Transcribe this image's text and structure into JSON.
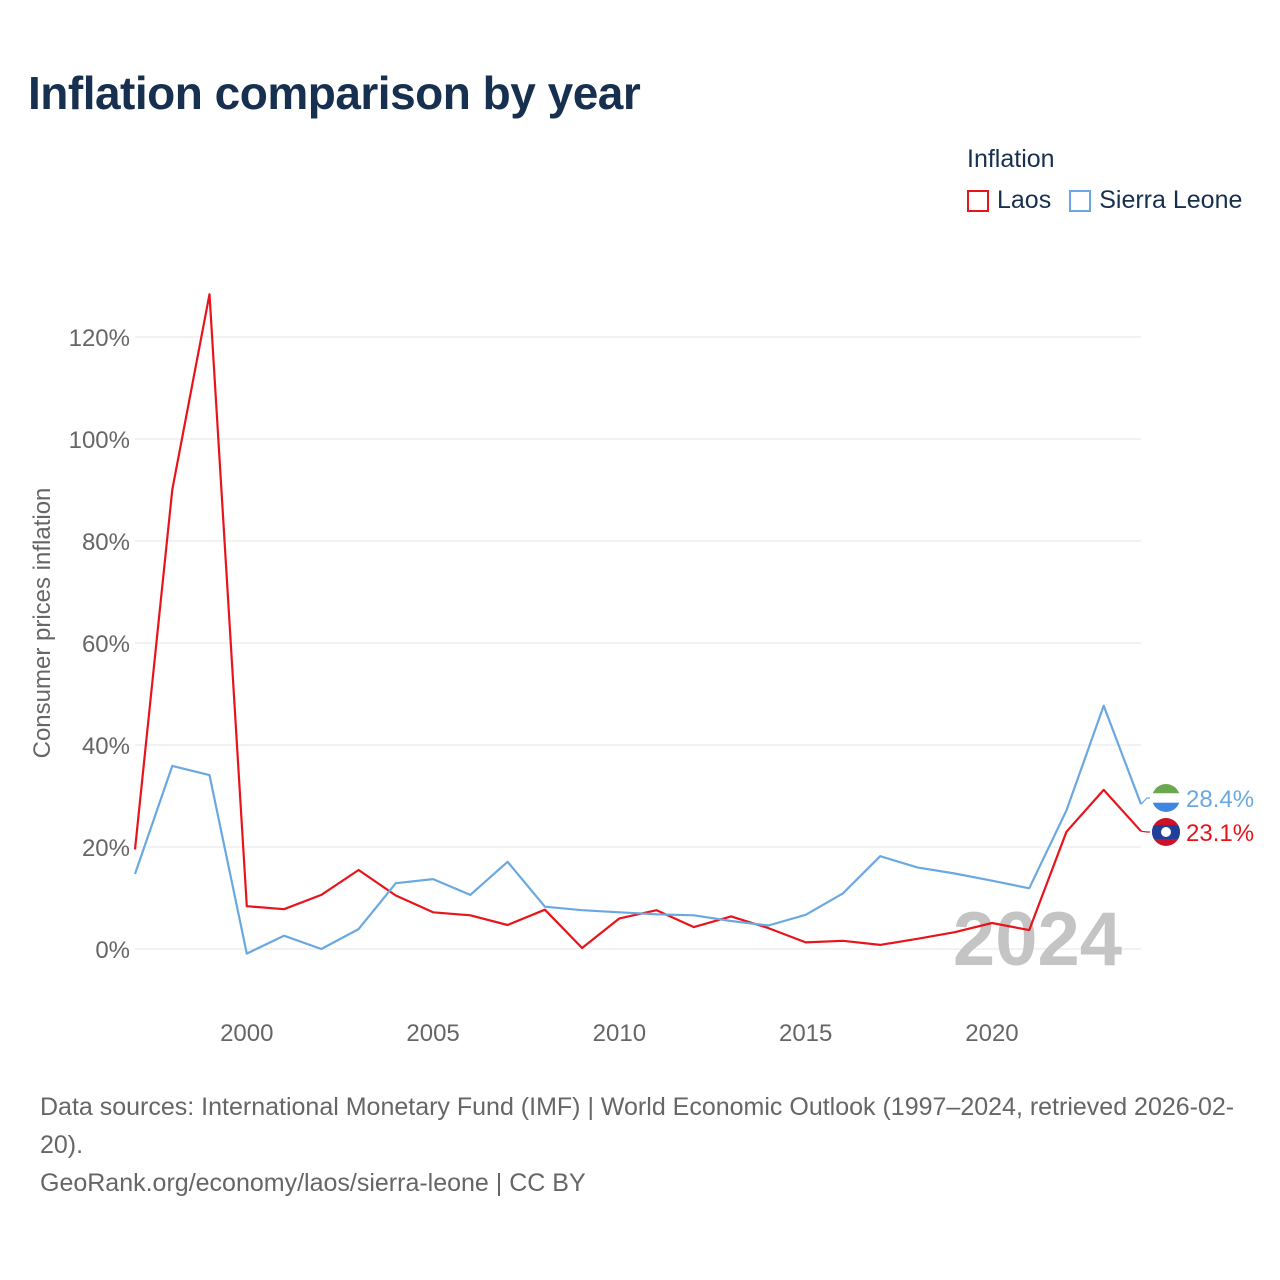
{
  "chart_data": {
    "type": "line",
    "title": "Inflation comparison by year",
    "legend_title": "Inflation",
    "legend_position": "top-right",
    "xlabel": "",
    "ylabel": "Consumer prices inflation",
    "xlim": [
      1997,
      2024
    ],
    "ylim": [
      -10,
      130
    ],
    "x_ticks": [
      2000,
      2005,
      2010,
      2015,
      2020
    ],
    "x_tick_labels": [
      "2000",
      "2005",
      "2010",
      "2015",
      "2020"
    ],
    "y_ticks": [
      0,
      20,
      40,
      60,
      80,
      100,
      120
    ],
    "y_tick_labels": [
      "0%",
      "20%",
      "40%",
      "60%",
      "80%",
      "100%",
      "120%"
    ],
    "grid": true,
    "watermark_year": "2024",
    "x": [
      1997,
      1998,
      1999,
      2000,
      2001,
      2002,
      2003,
      2004,
      2005,
      2006,
      2007,
      2008,
      2009,
      2010,
      2011,
      2012,
      2013,
      2014,
      2015,
      2016,
      2017,
      2018,
      2019,
      2020,
      2021,
      2022,
      2023,
      2024
    ],
    "series": [
      {
        "name": "Laos",
        "color": "#e8141b",
        "end_label": "23.1%",
        "flag": "laos-flag",
        "values": [
          19.5,
          90.1,
          128.4,
          8.4,
          7.8,
          10.6,
          15.5,
          10.5,
          7.2,
          6.6,
          4.7,
          7.7,
          0.2,
          6.0,
          7.6,
          4.3,
          6.4,
          4.1,
          1.3,
          1.6,
          0.8,
          2.0,
          3.3,
          5.1,
          3.7,
          23.0,
          31.2,
          23.1
        ]
      },
      {
        "name": "Sierra Leone",
        "color": "#6aa8e2",
        "end_label": "28.4%",
        "flag": "sierra-leone-flag",
        "values": [
          14.7,
          35.9,
          34.1,
          -0.9,
          2.6,
          0.0,
          3.9,
          12.9,
          13.7,
          10.6,
          17.1,
          8.3,
          7.6,
          7.2,
          6.8,
          6.6,
          5.5,
          4.6,
          6.7,
          10.9,
          18.2,
          16.0,
          14.8,
          13.4,
          11.9,
          27.2,
          47.7,
          28.4
        ]
      }
    ]
  },
  "source": {
    "line1": "Data sources: International Monetary Fund (IMF) | World Economic Outlook (1997–2024, retrieved 2026-02-20).",
    "line2": "GeoRank.org/economy/laos/sierra-leone | CC BY"
  }
}
